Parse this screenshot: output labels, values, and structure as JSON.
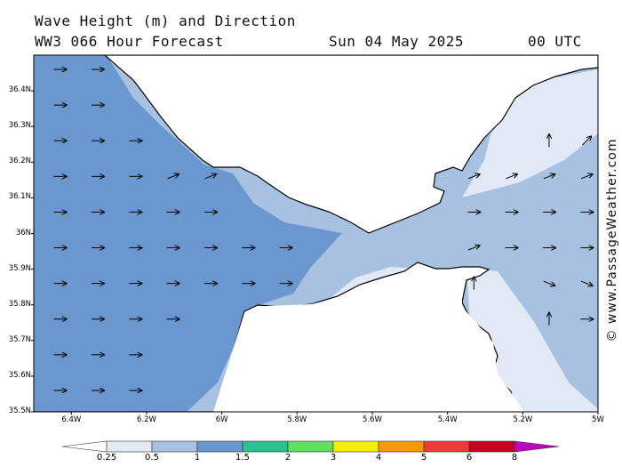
{
  "header": {
    "line1": "Wave Height (m) and Direction",
    "line2_left": "WW3 066 Hour Forecast",
    "date": "Sun 04 May 2025",
    "time": "00 UTC"
  },
  "watermark": "© www.PassageWeather.com",
  "map": {
    "lon_range": [
      -6.5,
      -5.0
    ],
    "lat_range": [
      35.5,
      36.5
    ],
    "lat_labels": [
      "36.4N",
      "36.3N",
      "36.2N",
      "36.1N",
      "36N",
      "35.9N",
      "35.8N",
      "35.7N",
      "35.6N",
      "35.5N"
    ],
    "lon_labels": [
      "6.4W",
      "6.2W",
      "6W",
      "5.8W",
      "5.6W",
      "5.4W",
      "5.2W",
      "5W"
    ],
    "colors": {
      "land": "#ffffff",
      "h025": "#e1e9f6",
      "h05": "#a8c1e1",
      "h1": "#6b97d1",
      "coast": "#000000"
    }
  },
  "colorbar": {
    "labels": [
      "0.25",
      "0.5",
      "1",
      "1.5",
      "2",
      "3",
      "4",
      "5",
      "6",
      "8"
    ],
    "colors": [
      "#ffffff",
      "#e1e9f6",
      "#a8c1e1",
      "#6b97d1",
      "#2cbf8f",
      "#5ee05e",
      "#f4ef00",
      "#f49a00",
      "#f03a3a",
      "#c8001e",
      "#c000c0"
    ]
  },
  "arrows": [
    {
      "x": -6.43,
      "y": 36.46,
      "dir": "E"
    },
    {
      "x": -6.33,
      "y": 36.46,
      "dir": "E"
    },
    {
      "x": -6.43,
      "y": 36.36,
      "dir": "E"
    },
    {
      "x": -6.33,
      "y": 36.36,
      "dir": "E"
    },
    {
      "x": -6.43,
      "y": 36.26,
      "dir": "E"
    },
    {
      "x": -6.33,
      "y": 36.26,
      "dir": "E"
    },
    {
      "x": -6.23,
      "y": 36.26,
      "dir": "E"
    },
    {
      "x": -6.43,
      "y": 36.16,
      "dir": "E"
    },
    {
      "x": -6.33,
      "y": 36.16,
      "dir": "E"
    },
    {
      "x": -6.23,
      "y": 36.16,
      "dir": "E"
    },
    {
      "x": -6.13,
      "y": 36.16,
      "dir": "ENE"
    },
    {
      "x": -6.03,
      "y": 36.16,
      "dir": "ENE"
    },
    {
      "x": -6.43,
      "y": 36.06,
      "dir": "E"
    },
    {
      "x": -6.33,
      "y": 36.06,
      "dir": "E"
    },
    {
      "x": -6.23,
      "y": 36.06,
      "dir": "E"
    },
    {
      "x": -6.13,
      "y": 36.06,
      "dir": "E"
    },
    {
      "x": -6.03,
      "y": 36.06,
      "dir": "E"
    },
    {
      "x": -6.43,
      "y": 35.96,
      "dir": "E"
    },
    {
      "x": -6.33,
      "y": 35.96,
      "dir": "E"
    },
    {
      "x": -6.23,
      "y": 35.96,
      "dir": "E"
    },
    {
      "x": -6.13,
      "y": 35.96,
      "dir": "E"
    },
    {
      "x": -6.03,
      "y": 35.96,
      "dir": "E"
    },
    {
      "x": -5.93,
      "y": 35.96,
      "dir": "E"
    },
    {
      "x": -5.83,
      "y": 35.96,
      "dir": "E"
    },
    {
      "x": -6.43,
      "y": 35.86,
      "dir": "E"
    },
    {
      "x": -6.33,
      "y": 35.86,
      "dir": "E"
    },
    {
      "x": -6.23,
      "y": 35.86,
      "dir": "E"
    },
    {
      "x": -6.13,
      "y": 35.86,
      "dir": "E"
    },
    {
      "x": -6.03,
      "y": 35.86,
      "dir": "E"
    },
    {
      "x": -5.93,
      "y": 35.86,
      "dir": "E"
    },
    {
      "x": -5.83,
      "y": 35.86,
      "dir": "E"
    },
    {
      "x": -6.43,
      "y": 35.76,
      "dir": "E"
    },
    {
      "x": -6.33,
      "y": 35.76,
      "dir": "E"
    },
    {
      "x": -6.23,
      "y": 35.76,
      "dir": "E"
    },
    {
      "x": -6.13,
      "y": 35.76,
      "dir": "E"
    },
    {
      "x": -6.43,
      "y": 35.66,
      "dir": "E"
    },
    {
      "x": -6.33,
      "y": 35.66,
      "dir": "E"
    },
    {
      "x": -6.23,
      "y": 35.66,
      "dir": "E"
    },
    {
      "x": -6.43,
      "y": 35.56,
      "dir": "E"
    },
    {
      "x": -6.33,
      "y": 35.56,
      "dir": "E"
    },
    {
      "x": -6.23,
      "y": 35.56,
      "dir": "E"
    },
    {
      "x": -5.33,
      "y": 36.16,
      "dir": "ENE"
    },
    {
      "x": -5.23,
      "y": 36.16,
      "dir": "ENE"
    },
    {
      "x": -5.13,
      "y": 36.16,
      "dir": "ENE"
    },
    {
      "x": -5.03,
      "y": 36.16,
      "dir": "ENE"
    },
    {
      "x": -5.13,
      "y": 36.26,
      "dir": "N"
    },
    {
      "x": -5.03,
      "y": 36.26,
      "dir": "NE"
    },
    {
      "x": -5.33,
      "y": 36.06,
      "dir": "E"
    },
    {
      "x": -5.23,
      "y": 36.06,
      "dir": "E"
    },
    {
      "x": -5.13,
      "y": 36.06,
      "dir": "E"
    },
    {
      "x": -5.03,
      "y": 36.06,
      "dir": "E"
    },
    {
      "x": -5.33,
      "y": 35.96,
      "dir": "ENE"
    },
    {
      "x": -5.23,
      "y": 35.96,
      "dir": "E"
    },
    {
      "x": -5.13,
      "y": 35.96,
      "dir": "E"
    },
    {
      "x": -5.03,
      "y": 35.96,
      "dir": "E"
    },
    {
      "x": -5.33,
      "y": 35.86,
      "dir": "N"
    },
    {
      "x": -5.13,
      "y": 35.86,
      "dir": "ESE"
    },
    {
      "x": -5.03,
      "y": 35.86,
      "dir": "ESE"
    },
    {
      "x": -5.13,
      "y": 35.76,
      "dir": "N"
    },
    {
      "x": -5.03,
      "y": 35.76,
      "dir": "E"
    }
  ]
}
